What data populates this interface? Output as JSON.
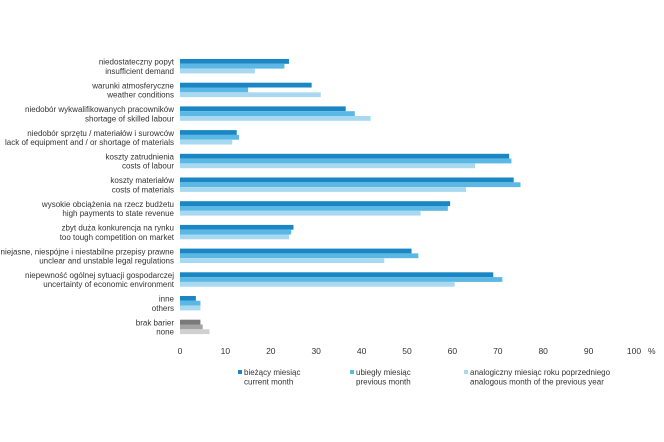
{
  "chart_data": {
    "type": "bar",
    "orientation": "horizontal",
    "categories": [
      [
        "niedostateczny popyt",
        "insufficient demand"
      ],
      [
        "warunki atmosferyczne",
        "weather conditions"
      ],
      [
        "niedobór wykwalifikowanych pracowników",
        "shortage of skilled labour"
      ],
      [
        "niedobór sprzętu / materiałów i surowców",
        "lack of equipment and / or shortage of materials"
      ],
      [
        "koszty zatrudnienia",
        "costs of labour"
      ],
      [
        "koszty materiałów",
        "costs of materials"
      ],
      [
        "wysokie obciążenia na rzecz budżetu",
        "high payments to state revenue"
      ],
      [
        "zbyt duża konkurencja na rynku",
        "too tough competition on market"
      ],
      [
        "niejasne, niespójne i niestabilne przepisy prawne",
        "unclear and unstable legal regulations"
      ],
      [
        "niepewność ogólnej sytuacji gospodarczej",
        "uncertainty of economic environment"
      ],
      [
        "inne",
        "others"
      ],
      [
        "brak barier",
        "none"
      ]
    ],
    "series": [
      {
        "name": [
          "bieżący miesiąc",
          "current month"
        ],
        "color": "#1a86c4",
        "values": [
          24.0,
          29.0,
          36.5,
          12.5,
          72.5,
          73.5,
          59.5,
          25.0,
          51.0,
          69.0,
          3.5,
          4.5
        ]
      },
      {
        "name": [
          "ubiegły miesiąc",
          "previous month"
        ],
        "color": "#5bb7e3",
        "values": [
          23.0,
          15.0,
          38.5,
          13.0,
          73.0,
          75.0,
          59.0,
          24.5,
          52.5,
          71.0,
          4.5,
          5.0
        ]
      },
      {
        "name": [
          "analogiczny miesiąc roku poprzedniego",
          "analogous month of the previous year"
        ],
        "color": "#a9d9f1",
        "values": [
          16.5,
          31.0,
          42.0,
          11.5,
          65.0,
          63.0,
          53.0,
          24.0,
          45.0,
          60.5,
          4.5,
          6.5
        ]
      }
    ],
    "none_colors": [
      "#7a7a7a",
      "#a3a3a3",
      "#d0d0d0"
    ],
    "xlim": [
      0,
      100
    ],
    "xticks": [
      0,
      10,
      20,
      30,
      40,
      50,
      60,
      70,
      80,
      90,
      100
    ],
    "unit": "%",
    "grid": false,
    "legend_position": "bottom"
  }
}
